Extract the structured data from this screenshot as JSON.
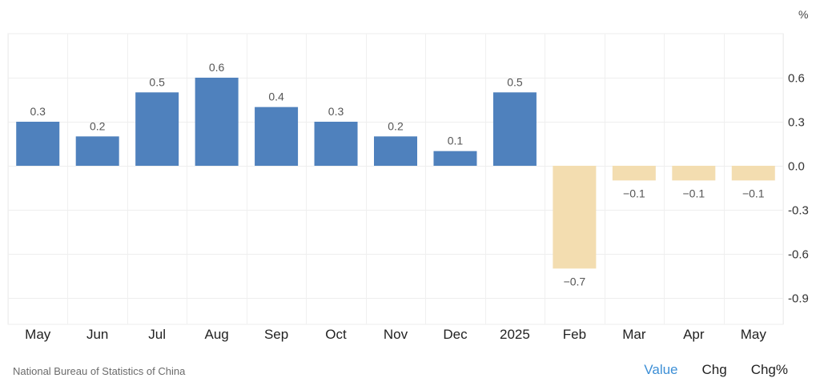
{
  "chart_data": {
    "type": "bar",
    "unit_label": "%",
    "categories": [
      "May",
      "Jun",
      "Jul",
      "Aug",
      "Sep",
      "Oct",
      "Nov",
      "Dec",
      "2025",
      "Feb",
      "Mar",
      "Apr",
      "May"
    ],
    "values": [
      0.3,
      0.2,
      0.5,
      0.6,
      0.4,
      0.3,
      0.2,
      0.1,
      0.5,
      -0.7,
      -0.1,
      -0.1,
      -0.1
    ],
    "value_labels": [
      "0.3",
      "0.2",
      "0.5",
      "0.6",
      "0.4",
      "0.3",
      "0.2",
      "0.1",
      "0.5",
      "−0.7",
      "−0.1",
      "−0.1",
      "−0.1"
    ],
    "y_ticks": [
      0.6,
      0.3,
      0.0,
      -0.3,
      -0.6,
      -0.9
    ],
    "y_tick_labels": [
      "0.6",
      "0.3",
      "0.0",
      "-0.3",
      "-0.6",
      "-0.9"
    ],
    "ylim": [
      -1.08,
      0.9
    ],
    "positive_color": "#4f81bd",
    "negative_color": "#f3ddb0",
    "grid": true,
    "title": "",
    "xlabel": "",
    "ylabel": ""
  },
  "footer": {
    "source": "National Bureau of Statistics of China",
    "tabs": [
      {
        "label": "Value",
        "active": true
      },
      {
        "label": "Chg",
        "active": false
      },
      {
        "label": "Chg%",
        "active": false
      }
    ]
  }
}
